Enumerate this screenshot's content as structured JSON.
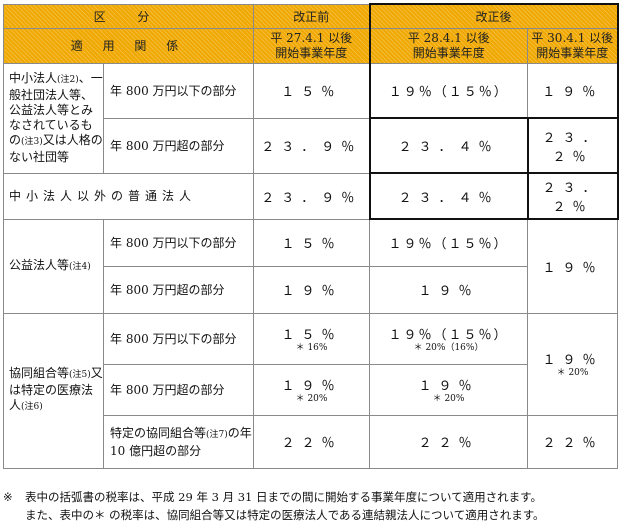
{
  "header": {
    "category": "区 分",
    "before": "改正前",
    "after": "改正後",
    "applicable": "適 用 関 係",
    "h27": "平 27.4.1 以後",
    "h27b": "開始事業年度",
    "h28": "平 28.4.1 以後",
    "h28b": "開始事業年度",
    "h30": "平 30.4.1 以後",
    "h30b": "開始事業年度"
  },
  "sme": {
    "label": "中小法人",
    "note2": "(注2)",
    "label2": "、一般社団法人等、公益法人等とみなされているもの",
    "note3": "(注3)",
    "label3": "又は人格のない社団等",
    "row1_label": "年 800 万円以下の部分",
    "row1_h27": "１５％",
    "row1_h28": "１９％（１５％）",
    "row1_h30": "１９％",
    "row2_label": "年 800 万円超の部分",
    "row2_h27": "２３．９％",
    "row2_h28": "２３．４％",
    "row2_h30": "２３．２％"
  },
  "ordinary": {
    "label": "中小法人以外の普通法人",
    "h27": "２３．９％",
    "h28": "２３．４％",
    "h30": "２３．２％"
  },
  "public": {
    "label": "公益法人等",
    "note4": "(注4)",
    "row1_label": "年 800 万円以下の部分",
    "row1_h27": "１５％",
    "row1_h28": "１９％（１５％）",
    "row2_label": "年 800 万円超の部分",
    "row2_h27": "１９％",
    "row2_h28": "１９％",
    "h30": "１９％"
  },
  "coop": {
    "label": "協同組合等",
    "note5": "(注5)",
    "label2": "又は特定の医療法人",
    "note6": "(注6)",
    "row1_label": "年 800 万円以下の部分",
    "row1_h27": "１５％",
    "row1_h27_sub": "＊ 16%",
    "row1_h28": "１９％（１５％）",
    "row1_h28_sub": "＊ 20%（16%）",
    "row2_label": "年 800 万円超の部分",
    "row2_h27": "１９％",
    "row2_h27_sub": "＊ 20%",
    "row2_h28": "１９％",
    "row2_h28_sub": "＊ 20%",
    "h30": "１９％",
    "h30_sub": "＊ 20%",
    "row3_label": "特定の協同組合等",
    "note7": "(注7)",
    "row3_label2": "の年 10 億円超の部分",
    "row3_h27": "２２％",
    "row3_h28": "２２％",
    "row3_h30": "２２％"
  },
  "notes": {
    "mark": "※",
    "line1": "表中の括弧書の税率は、平成 29 年 3 月 31 日までの間に開始する事業年度について適用されます。",
    "line2": "また、表中の＊ の税率は、協同組合等又は特定の医療法人である連結親法人について適用されます。"
  }
}
